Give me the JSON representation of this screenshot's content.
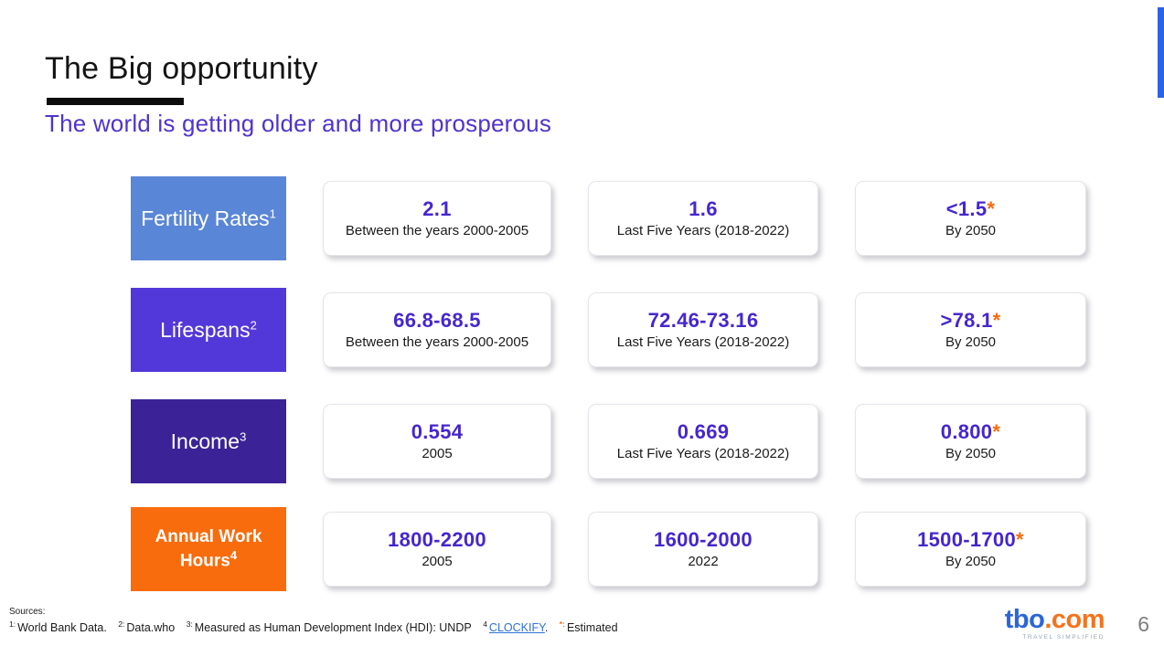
{
  "slide": {
    "title": "The Big opportunity",
    "subtitle": "The world is getting older and more prosperous",
    "page_number": "6"
  },
  "colors": {
    "subtitle_purple": "#4d35cf",
    "value_purple": "#4527ce",
    "asterisk_orange": "#f96a0d",
    "accent_bar_blue": "#2a63e4",
    "link_blue": "#2f70d9",
    "logo_blue": "#2b66d8",
    "logo_orange": "#f4731c"
  },
  "rows": [
    {
      "label": "Fertility Rates",
      "sup": "1",
      "tile_color": "#5a86d7",
      "cards": [
        {
          "value": "2.1",
          "caption": "Between the years 2000-2005"
        },
        {
          "value": "1.6",
          "caption": "Last Five Years (2018-2022)"
        },
        {
          "value": "<1.5",
          "asterisk": "*",
          "caption": "By 2050"
        }
      ]
    },
    {
      "label": "Lifespans",
      "sup": "2",
      "tile_color": "#5338d9",
      "cards": [
        {
          "value": "66.8-68.5",
          "caption": "Between the years 2000-2005"
        },
        {
          "value": "72.46-73.16",
          "caption": "Last Five Years (2018-2022)"
        },
        {
          "value": ">78.1",
          "asterisk": "*",
          "caption": "By 2050"
        }
      ]
    },
    {
      "label": "Income",
      "sup": "3",
      "tile_color": "#3b2397",
      "cards": [
        {
          "value": "0.554",
          "caption": "2005"
        },
        {
          "value": "0.669",
          "caption": "Last Five Years (2018-2022)"
        },
        {
          "value": "0.800",
          "asterisk": "*",
          "caption": "By 2050"
        }
      ]
    },
    {
      "label": "Annual Work Hours",
      "sup": "4",
      "tile_color": "#f96c0d",
      "cards": [
        {
          "value": "1800-2200",
          "caption": "2005"
        },
        {
          "value": "1600-2000",
          "caption": "2022"
        },
        {
          "value": "1500-1700",
          "asterisk": "*",
          "caption": "By 2050"
        }
      ]
    }
  ],
  "footer": {
    "sources_label": "Sources:",
    "refs": [
      {
        "sup": "1:",
        "text": "World Bank Data."
      },
      {
        "sup": "2:",
        "text": "Data.who"
      },
      {
        "sup": "3:",
        "text": "Measured as Human Development Index (HDI): UNDP"
      },
      {
        "sup": "4",
        "link": "CLOCKIFY",
        "after": "."
      },
      {
        "sup": "*:",
        "text": "Estimated"
      }
    ]
  },
  "logo": {
    "tbo": "tbo",
    "dotcom": ".com",
    "tagline": "TRAVEL SIMPLIFIED"
  }
}
